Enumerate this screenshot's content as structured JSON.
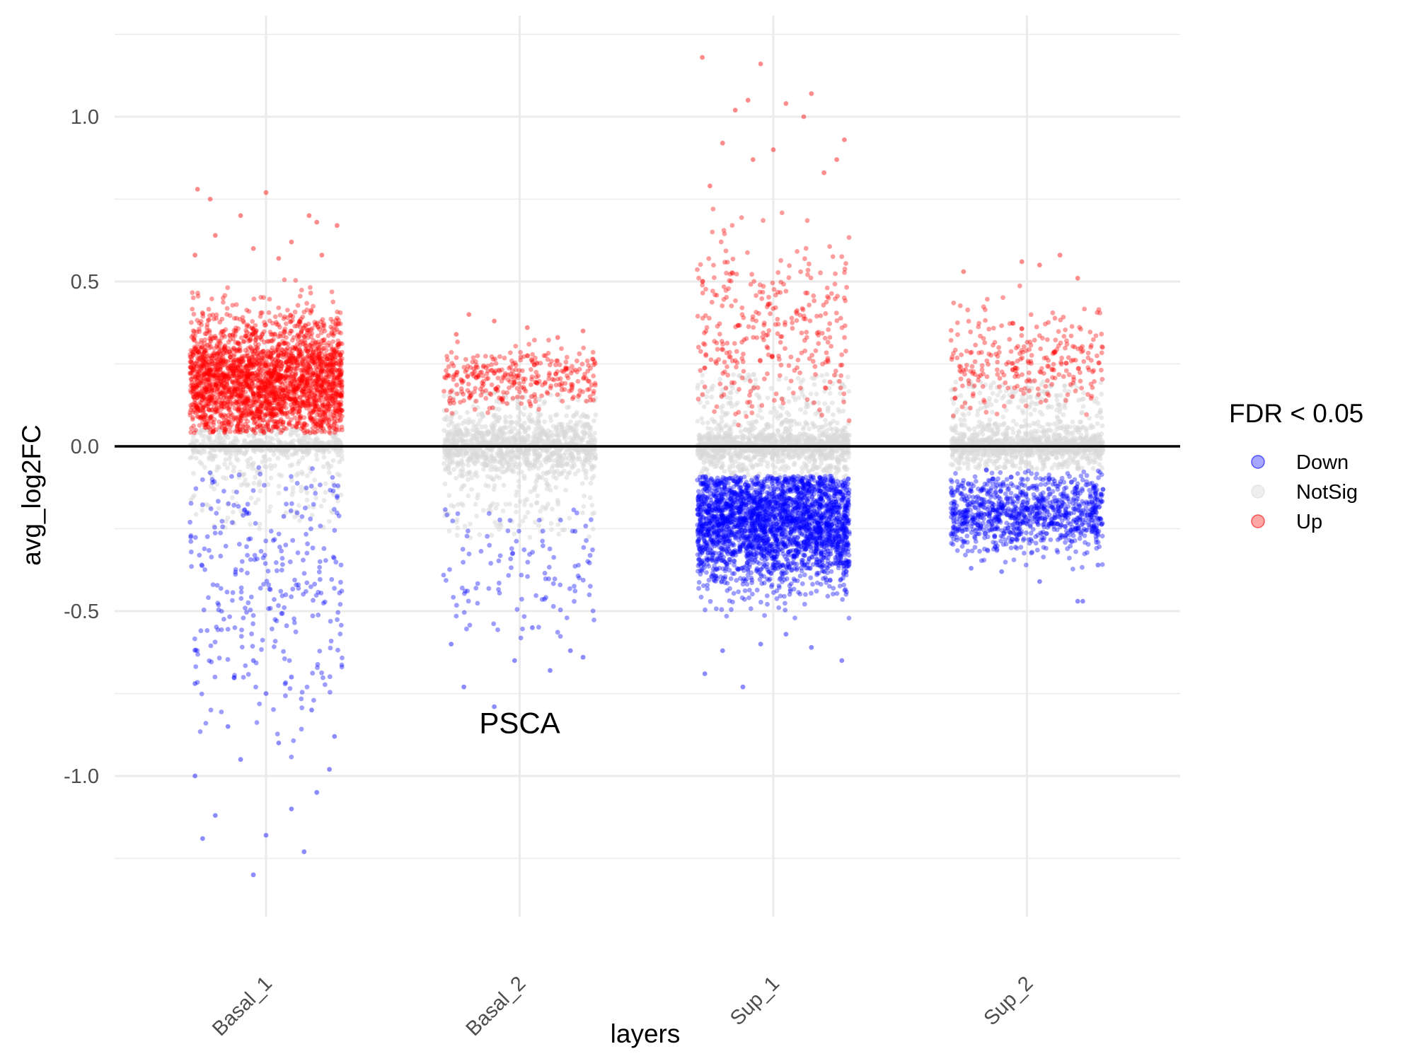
{
  "chart_data": {
    "type": "scatter",
    "subtype": "jitter",
    "title": "",
    "xlabel": "layers",
    "ylabel": "avg_log2FC",
    "categories": [
      "Basal_1",
      "Basal_2",
      "Sup_1",
      "Sup_2"
    ],
    "ylim": [
      -1.43,
      1.3
    ],
    "yticks": [
      -1.0,
      -0.5,
      0.0,
      0.5,
      1.0
    ],
    "ytick_labels": [
      "-1.0",
      "-0.5",
      "0.0",
      "0.5",
      "1.0"
    ],
    "grid": true,
    "reference_line_y": 0.0,
    "annotations": [
      {
        "text": "PSCA",
        "category": "Basal_2",
        "y": -0.84
      }
    ],
    "legend": {
      "title": "FDR < 0.05",
      "position": "right",
      "entries": [
        {
          "label": "Down",
          "color": "#0000ff"
        },
        {
          "label": "NotSig",
          "color": "#d9d9d9"
        },
        {
          "label": "Up",
          "color": "#ff0000"
        }
      ]
    },
    "colors": {
      "Down": "#0000ff",
      "NotSig": "#d9d9d9",
      "Up": "#ff0000"
    },
    "series": [
      {
        "name": "Basal_1",
        "up_points": [
          [
            -0.27,
            0.78
          ],
          [
            -0.22,
            0.75
          ],
          [
            -0.1,
            0.7
          ],
          [
            0.0,
            0.77
          ],
          [
            0.17,
            0.7
          ],
          [
            0.28,
            0.67
          ],
          [
            0.2,
            0.68
          ],
          [
            -0.2,
            0.64
          ],
          [
            0.1,
            0.62
          ],
          [
            -0.05,
            0.6
          ],
          [
            -0.28,
            0.58
          ],
          [
            0.05,
            0.57
          ],
          [
            0.22,
            0.58
          ]
        ],
        "down_points": [
          [
            -0.25,
            -1.19
          ],
          [
            0.15,
            -1.23
          ],
          [
            -0.05,
            -1.3
          ],
          [
            0.0,
            -1.18
          ],
          [
            -0.2,
            -1.12
          ],
          [
            0.2,
            -1.05
          ],
          [
            0.1,
            -1.1
          ],
          [
            -0.28,
            -1.0
          ],
          [
            0.25,
            -0.98
          ],
          [
            -0.1,
            -0.95
          ],
          [
            0.05,
            -0.9
          ],
          [
            -0.15,
            -0.85
          ],
          [
            0.27,
            -0.88
          ],
          [
            -0.28,
            -0.72
          ],
          [
            0.18,
            -0.8
          ],
          [
            0.0,
            -0.75
          ],
          [
            -0.05,
            -0.65
          ],
          [
            0.1,
            -0.7
          ]
        ],
        "stats": {
          "up": {
            "n": 2600,
            "mean": 0.19,
            "sd": 0.1,
            "min": 0.04,
            "max": 0.55
          },
          "down": {
            "n": 290,
            "mean": -0.42,
            "sd": 0.22,
            "min": -0.95,
            "max": -0.06
          },
          "notsig": {
            "n": 700,
            "min": -0.25,
            "max": 0.05
          }
        }
      },
      {
        "name": "Basal_2",
        "up_points": [
          [
            -0.2,
            0.4
          ],
          [
            0.03,
            0.36
          ],
          [
            -0.1,
            0.38
          ],
          [
            0.25,
            0.35
          ],
          [
            0.15,
            0.33
          ],
          [
            -0.25,
            0.34
          ]
        ],
        "down_points": [
          [
            -0.22,
            -0.73
          ],
          [
            -0.1,
            -0.79
          ],
          [
            0.12,
            -0.68
          ],
          [
            0.25,
            -0.64
          ],
          [
            -0.02,
            -0.65
          ],
          [
            0.2,
            -0.62
          ],
          [
            -0.27,
            -0.6
          ],
          [
            0.05,
            -0.55
          ]
        ],
        "stats": {
          "up": {
            "n": 320,
            "mean": 0.2,
            "sd": 0.05,
            "min": 0.1,
            "max": 0.33
          },
          "down": {
            "n": 110,
            "mean": -0.35,
            "sd": 0.12,
            "min": -0.6,
            "max": -0.17
          },
          "notsig": {
            "n": 1300,
            "min": -0.28,
            "max": 0.17
          }
        }
      },
      {
        "name": "Sup_1",
        "up_points": [
          [
            -0.28,
            1.18
          ],
          [
            -0.05,
            1.16
          ],
          [
            0.15,
            1.07
          ],
          [
            -0.1,
            1.05
          ],
          [
            0.05,
            1.04
          ],
          [
            -0.15,
            1.02
          ],
          [
            0.12,
            1.0
          ],
          [
            0.28,
            0.93
          ],
          [
            -0.2,
            0.92
          ],
          [
            0.0,
            0.9
          ],
          [
            0.25,
            0.87
          ],
          [
            -0.08,
            0.87
          ],
          [
            0.2,
            0.83
          ],
          [
            -0.25,
            0.79
          ]
        ],
        "down_points": [
          [
            -0.27,
            -0.69
          ],
          [
            -0.12,
            -0.73
          ],
          [
            0.27,
            -0.65
          ],
          [
            0.15,
            -0.61
          ],
          [
            -0.05,
            -0.6
          ],
          [
            0.05,
            -0.57
          ],
          [
            -0.2,
            -0.62
          ]
        ],
        "stats": {
          "up": {
            "n": 320,
            "mean": 0.34,
            "sd": 0.14,
            "min": 0.06,
            "max": 0.78
          },
          "down": {
            "n": 2800,
            "mean": -0.22,
            "sd": 0.1,
            "min": -0.54,
            "max": -0.09
          },
          "notsig": {
            "n": 1300,
            "min": -0.1,
            "max": 0.22
          }
        }
      },
      {
        "name": "Sup_2",
        "up_points": [
          [
            0.13,
            0.58
          ],
          [
            -0.02,
            0.56
          ],
          [
            -0.25,
            0.53
          ],
          [
            0.05,
            0.55
          ],
          [
            0.2,
            0.51
          ]
        ],
        "down_points": [
          [
            0.22,
            -0.47
          ],
          [
            0.2,
            -0.47
          ],
          [
            0.05,
            -0.41
          ],
          [
            -0.1,
            -0.38
          ],
          [
            0.28,
            -0.36
          ],
          [
            -0.22,
            -0.37
          ]
        ],
        "stats": {
          "up": {
            "n": 270,
            "mean": 0.26,
            "sd": 0.08,
            "min": 0.09,
            "max": 0.5
          },
          "down": {
            "n": 1000,
            "mean": -0.2,
            "sd": 0.06,
            "min": -0.38,
            "max": -0.07
          },
          "notsig": {
            "n": 1300,
            "min": -0.07,
            "max": 0.2
          }
        }
      }
    ]
  }
}
